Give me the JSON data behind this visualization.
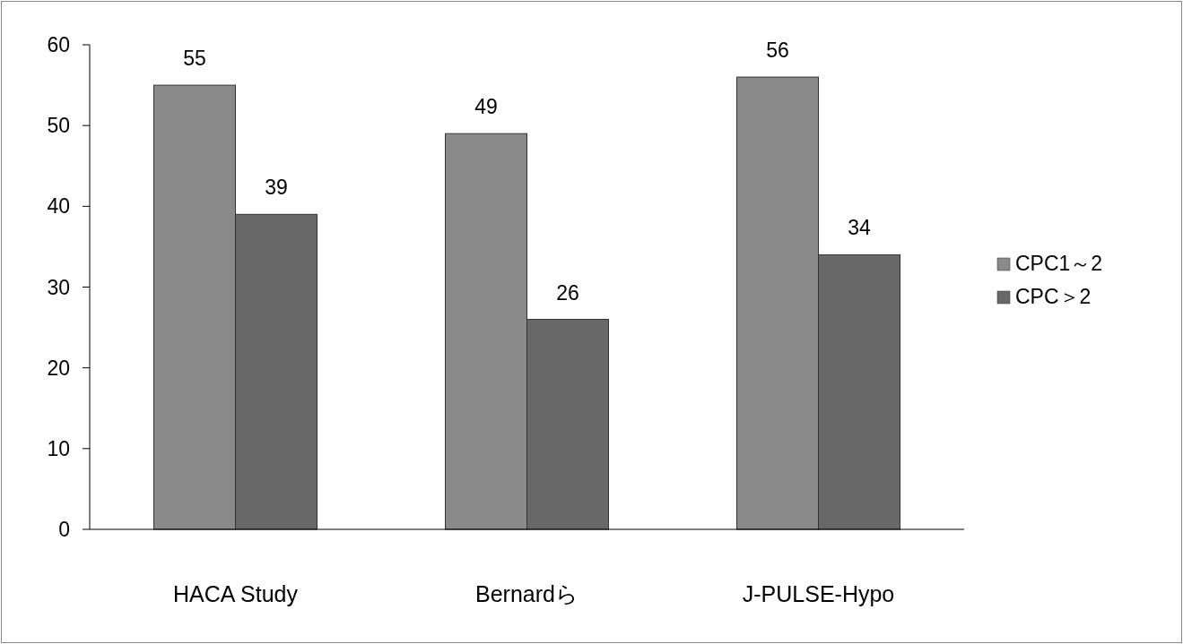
{
  "chart_data": {
    "type": "bar",
    "categories": [
      "HACA Study",
      "Bernardら",
      "J-PULSE-Hypo"
    ],
    "series": [
      {
        "name": "CPC1～2",
        "color": "#8a8a8a",
        "values": [
          55,
          49,
          56
        ]
      },
      {
        "name": "CPC＞2",
        "color": "#686868",
        "values": [
          39,
          26,
          34
        ]
      }
    ],
    "ylim": [
      0,
      60
    ],
    "yticks": [
      0,
      10,
      20,
      30,
      40,
      50,
      60
    ],
    "data_labels": true,
    "legend": "right",
    "grid": false
  }
}
